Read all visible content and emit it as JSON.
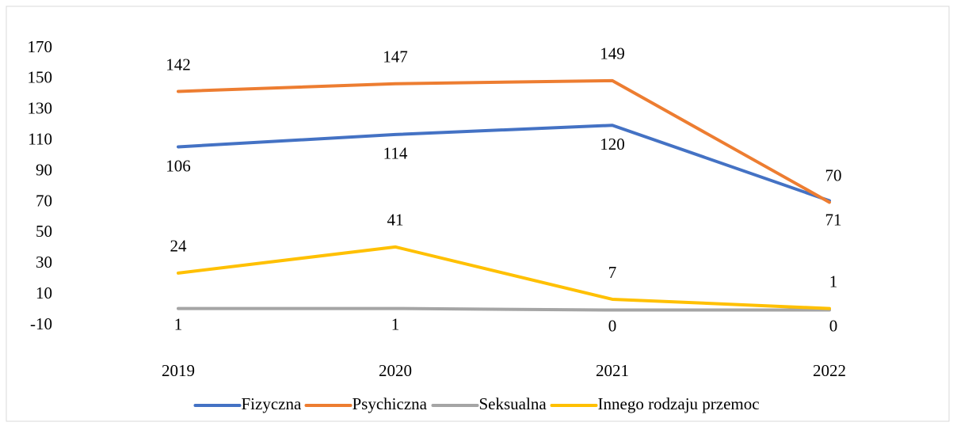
{
  "chart_data": {
    "type": "line",
    "categories": [
      "2019",
      "2020",
      "2021",
      "2022"
    ],
    "series": [
      {
        "name": "Fizyczna",
        "color": "#4472c4",
        "values": [
          106,
          114,
          120,
          71
        ]
      },
      {
        "name": "Psychiczna",
        "color": "#ed7d31",
        "values": [
          142,
          147,
          149,
          70
        ]
      },
      {
        "name": "Seksualna",
        "color": "#a5a5a5",
        "values": [
          1,
          1,
          0,
          0
        ]
      },
      {
        "name": "Innego rodzaju przemoc",
        "color": "#ffc000",
        "values": [
          24,
          41,
          7,
          1
        ]
      }
    ],
    "ylim": [
      -10,
      170
    ],
    "yticks": [
      -10,
      10,
      30,
      50,
      70,
      90,
      110,
      130,
      150,
      170
    ],
    "grid": false,
    "legend": "bottom"
  }
}
